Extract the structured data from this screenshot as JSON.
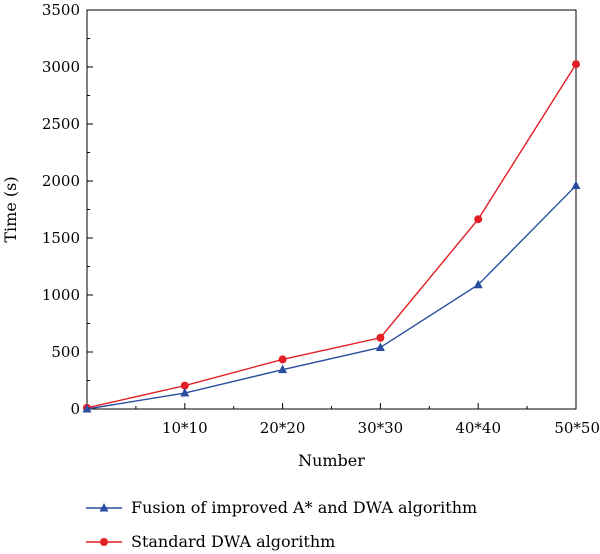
{
  "chart_data": {
    "type": "line",
    "xlabel": "Number",
    "ylabel": "Time (s)",
    "categories": [
      "",
      "10*10",
      "20*20",
      "30*30",
      "40*40",
      "50*50"
    ],
    "x": [
      0,
      1,
      2,
      3,
      4,
      5
    ],
    "ylim": [
      0,
      3500
    ],
    "yticks": [
      0,
      500,
      1000,
      1500,
      2000,
      2500,
      3000,
      3500
    ],
    "legend_position": "bottom",
    "grid": false,
    "series": [
      {
        "name": "Fusion of improved A* and DWA algorithm",
        "color": "#2a4da0",
        "marker": "triangle",
        "values": [
          0,
          140,
          345,
          540,
          1090,
          1960
        ]
      },
      {
        "name": "Standard DWA algorithm",
        "color": "#e31e24",
        "marker": "circle",
        "values": [
          10,
          205,
          435,
          625,
          1665,
          3025
        ]
      }
    ]
  }
}
